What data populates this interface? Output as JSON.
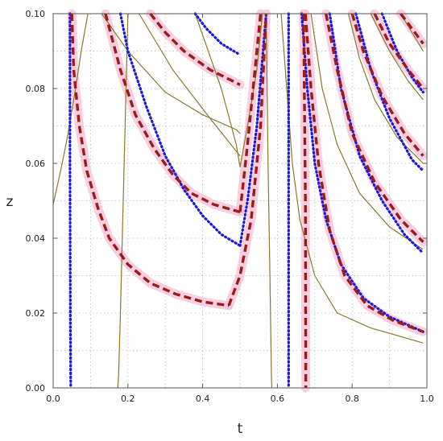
{
  "chart_data": {
    "type": "line",
    "title": "",
    "xlabel": "t",
    "ylabel": "z",
    "xlim": [
      0,
      1
    ],
    "ylim": [
      0,
      0.1
    ],
    "x_ticks": [
      "0.0",
      "0.2",
      "0.4",
      "0.6",
      "0.8",
      "1.0"
    ],
    "y_ticks": [
      "0.00",
      "0.02",
      "0.04",
      "0.06",
      "0.08",
      "0.10"
    ],
    "x_tick_values": [
      0,
      0.2,
      0.4,
      0.6,
      0.8,
      1.0
    ],
    "y_tick_values": [
      0,
      0.02,
      0.04,
      0.06,
      0.08,
      0.1
    ],
    "grid": true,
    "legend": "none",
    "colors": {
      "solid": "#8a7a2a",
      "dotted": "#1a1adf",
      "dashed": "#9b1b1b",
      "halo": "#f7c6dc"
    },
    "series": [
      {
        "style": "solid",
        "points": [
          [
            0.0,
            0.049
          ],
          [
            0.02,
            0.058
          ],
          [
            0.04,
            0.068
          ],
          [
            0.06,
            0.08
          ],
          [
            0.075,
            0.09
          ],
          [
            0.093,
            0.1
          ]
        ]
      },
      {
        "style": "solid",
        "points": [
          [
            0.173,
            0.0
          ],
          [
            0.175,
            0.003
          ],
          [
            0.18,
            0.02
          ],
          [
            0.185,
            0.04
          ],
          [
            0.19,
            0.06
          ],
          [
            0.195,
            0.08
          ],
          [
            0.2,
            0.1
          ]
        ]
      },
      {
        "style": "solid",
        "points": [
          [
            0.13,
            0.1
          ],
          [
            0.2,
            0.09
          ],
          [
            0.3,
            0.079
          ],
          [
            0.4,
            0.073
          ],
          [
            0.49,
            0.069
          ],
          [
            0.5,
            0.068
          ]
        ]
      },
      {
        "style": "solid",
        "points": [
          [
            0.23,
            0.1
          ],
          [
            0.32,
            0.085
          ],
          [
            0.42,
            0.072
          ],
          [
            0.5,
            0.062
          ]
        ]
      },
      {
        "style": "solid",
        "points": [
          [
            0.38,
            0.1
          ],
          [
            0.45,
            0.08
          ],
          [
            0.49,
            0.065
          ],
          [
            0.5,
            0.059
          ]
        ]
      },
      {
        "style": "solid",
        "points": [
          [
            0.5,
            0.059
          ],
          [
            0.52,
            0.07
          ],
          [
            0.545,
            0.085
          ],
          [
            0.56,
            0.1
          ]
        ]
      },
      {
        "style": "solid",
        "points": [
          [
            0.585,
            0.0
          ],
          [
            0.584,
            0.003
          ],
          [
            0.58,
            0.03
          ],
          [
            0.575,
            0.06
          ],
          [
            0.57,
            0.1
          ]
        ]
      },
      {
        "style": "solid",
        "points": [
          [
            0.61,
            0.1
          ],
          [
            0.625,
            0.08
          ],
          [
            0.64,
            0.06
          ],
          [
            0.66,
            0.045
          ],
          [
            0.7,
            0.03
          ],
          [
            0.76,
            0.02
          ],
          [
            0.85,
            0.016
          ],
          [
            0.99,
            0.012
          ]
        ]
      },
      {
        "style": "solid",
        "points": [
          [
            0.69,
            0.1
          ],
          [
            0.72,
            0.08
          ],
          [
            0.76,
            0.065
          ],
          [
            0.82,
            0.052
          ],
          [
            0.9,
            0.043
          ],
          [
            0.99,
            0.037
          ]
        ]
      },
      {
        "style": "solid",
        "points": [
          [
            0.79,
            0.1
          ],
          [
            0.82,
            0.088
          ],
          [
            0.86,
            0.077
          ],
          [
            0.92,
            0.067
          ],
          [
            0.99,
            0.06
          ]
        ]
      },
      {
        "style": "solid",
        "points": [
          [
            0.85,
            0.1
          ],
          [
            0.9,
            0.09
          ],
          [
            0.95,
            0.082
          ],
          [
            0.99,
            0.077
          ]
        ]
      },
      {
        "style": "solid",
        "points": [
          [
            0.93,
            0.1
          ],
          [
            0.96,
            0.095
          ],
          [
            0.99,
            0.09
          ]
        ]
      },
      {
        "style": "dotted",
        "points": [
          [
            0.045,
            0.1
          ],
          [
            0.045,
            0.06
          ],
          [
            0.046,
            0.02
          ],
          [
            0.047,
            0.0
          ]
        ]
      },
      {
        "style": "dotted",
        "points": [
          [
            0.18,
            0.1
          ],
          [
            0.2,
            0.09
          ],
          [
            0.25,
            0.075
          ],
          [
            0.3,
            0.062
          ],
          [
            0.35,
            0.053
          ],
          [
            0.4,
            0.046
          ],
          [
            0.45,
            0.041
          ],
          [
            0.5,
            0.038
          ]
        ]
      },
      {
        "style": "dotted",
        "points": [
          [
            0.38,
            0.1
          ],
          [
            0.41,
            0.096
          ],
          [
            0.45,
            0.092
          ],
          [
            0.5,
            0.089
          ]
        ]
      },
      {
        "style": "dotted",
        "points": [
          [
            0.5,
            0.038
          ],
          [
            0.52,
            0.05
          ],
          [
            0.545,
            0.07
          ],
          [
            0.57,
            0.1
          ]
        ]
      },
      {
        "style": "dotted",
        "points": [
          [
            0.63,
            0.1
          ],
          [
            0.63,
            0.05
          ],
          [
            0.63,
            0.0
          ]
        ]
      },
      {
        "style": "dotted",
        "points": [
          [
            0.665,
            0.1
          ],
          [
            0.68,
            0.08
          ],
          [
            0.7,
            0.06
          ],
          [
            0.73,
            0.045
          ],
          [
            0.77,
            0.033
          ],
          [
            0.83,
            0.024
          ],
          [
            0.9,
            0.019
          ],
          [
            0.99,
            0.015
          ]
        ]
      },
      {
        "style": "dotted",
        "points": [
          [
            0.74,
            0.1
          ],
          [
            0.77,
            0.08
          ],
          [
            0.82,
            0.062
          ],
          [
            0.88,
            0.05
          ],
          [
            0.94,
            0.041
          ],
          [
            0.99,
            0.036
          ]
        ]
      },
      {
        "style": "dotted",
        "points": [
          [
            0.81,
            0.1
          ],
          [
            0.85,
            0.085
          ],
          [
            0.9,
            0.072
          ],
          [
            0.96,
            0.061
          ],
          [
            0.99,
            0.058
          ]
        ]
      },
      {
        "style": "dotted",
        "points": [
          [
            0.88,
            0.1
          ],
          [
            0.92,
            0.09
          ],
          [
            0.96,
            0.083
          ],
          [
            0.99,
            0.079
          ]
        ]
      },
      {
        "style": "dashed",
        "points": [
          [
            0.05,
            0.1
          ],
          [
            0.055,
            0.085
          ],
          [
            0.07,
            0.07
          ],
          [
            0.09,
            0.058
          ],
          [
            0.12,
            0.048
          ],
          [
            0.15,
            0.04
          ],
          [
            0.2,
            0.033
          ],
          [
            0.26,
            0.028
          ],
          [
            0.33,
            0.025
          ],
          [
            0.4,
            0.023
          ],
          [
            0.47,
            0.022
          ]
        ]
      },
      {
        "style": "dashed",
        "points": [
          [
            0.14,
            0.1
          ],
          [
            0.18,
            0.085
          ],
          [
            0.22,
            0.073
          ],
          [
            0.27,
            0.064
          ],
          [
            0.32,
            0.057
          ],
          [
            0.37,
            0.052
          ],
          [
            0.43,
            0.049
          ],
          [
            0.5,
            0.047
          ]
        ]
      },
      {
        "style": "dashed",
        "points": [
          [
            0.26,
            0.1
          ],
          [
            0.3,
            0.095
          ],
          [
            0.35,
            0.09
          ],
          [
            0.42,
            0.085
          ],
          [
            0.5,
            0.081
          ]
        ]
      },
      {
        "style": "dashed",
        "points": [
          [
            0.47,
            0.022
          ],
          [
            0.5,
            0.03
          ],
          [
            0.53,
            0.045
          ],
          [
            0.555,
            0.07
          ],
          [
            0.57,
            0.1
          ]
        ]
      },
      {
        "style": "dashed",
        "points": [
          [
            0.5,
            0.047
          ],
          [
            0.52,
            0.065
          ],
          [
            0.54,
            0.085
          ],
          [
            0.555,
            0.1
          ]
        ]
      },
      {
        "style": "dashed",
        "points": [
          [
            0.67,
            0.1
          ],
          [
            0.675,
            0.05
          ],
          [
            0.676,
            0.0
          ]
        ]
      },
      {
        "style": "dashed",
        "points": [
          [
            0.675,
            0.1
          ],
          [
            0.69,
            0.08
          ],
          [
            0.71,
            0.06
          ],
          [
            0.74,
            0.042
          ],
          [
            0.78,
            0.03
          ],
          [
            0.84,
            0.022
          ],
          [
            0.91,
            0.018
          ],
          [
            0.99,
            0.015
          ]
        ]
      },
      {
        "style": "dashed",
        "points": [
          [
            0.73,
            0.1
          ],
          [
            0.76,
            0.085
          ],
          [
            0.8,
            0.068
          ],
          [
            0.86,
            0.055
          ],
          [
            0.93,
            0.045
          ],
          [
            0.99,
            0.039
          ]
        ]
      },
      {
        "style": "dashed",
        "points": [
          [
            0.8,
            0.1
          ],
          [
            0.83,
            0.09
          ],
          [
            0.88,
            0.078
          ],
          [
            0.94,
            0.068
          ],
          [
            0.99,
            0.062
          ]
        ]
      },
      {
        "style": "dashed",
        "points": [
          [
            0.86,
            0.1
          ],
          [
            0.9,
            0.092
          ],
          [
            0.95,
            0.085
          ],
          [
            0.99,
            0.08
          ]
        ]
      },
      {
        "style": "dashed",
        "points": [
          [
            0.93,
            0.1
          ],
          [
            0.96,
            0.096
          ],
          [
            0.99,
            0.092
          ]
        ]
      }
    ]
  }
}
